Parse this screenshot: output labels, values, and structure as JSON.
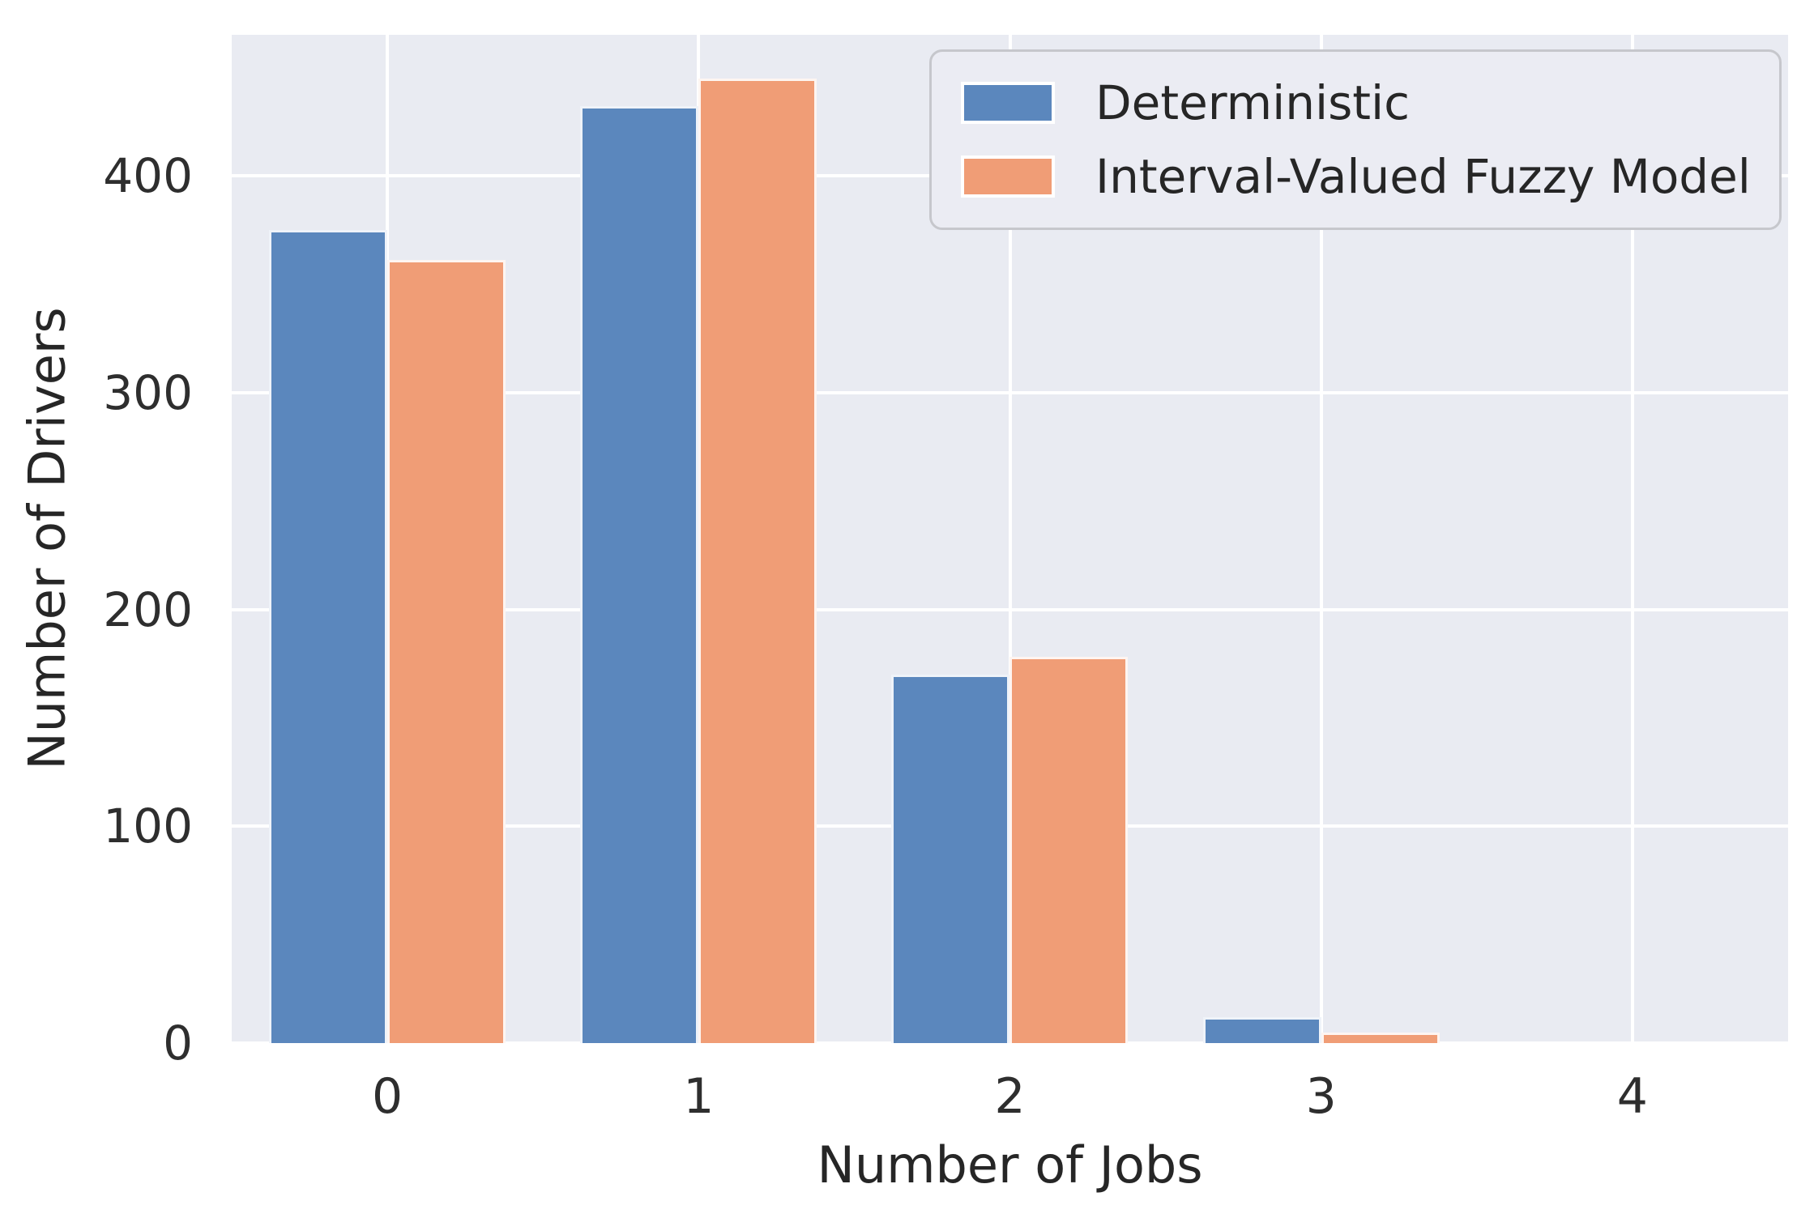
{
  "chart_data": {
    "type": "bar",
    "categories": [
      "0",
      "1",
      "2",
      "3",
      "4"
    ],
    "series": [
      {
        "name": "Deterministic",
        "color": "#5b87bd",
        "values": [
          375,
          432,
          170,
          12,
          0
        ]
      },
      {
        "name": "Interval-Valued Fuzzy Model",
        "color": "#f09d76",
        "values": [
          361,
          445,
          178,
          5,
          0
        ]
      }
    ],
    "xlabel": "Number of Jobs",
    "ylabel": "Number of Drivers",
    "yticks": [
      0,
      100,
      200,
      300,
      400
    ],
    "ylim": [
      0,
      465
    ],
    "grid": true,
    "legend_position": "upper-right",
    "colors": {
      "plot_background": "#e9ebf2",
      "gridline": "#ffffff",
      "text": "#262626",
      "figure_background": "#ffffff"
    }
  }
}
